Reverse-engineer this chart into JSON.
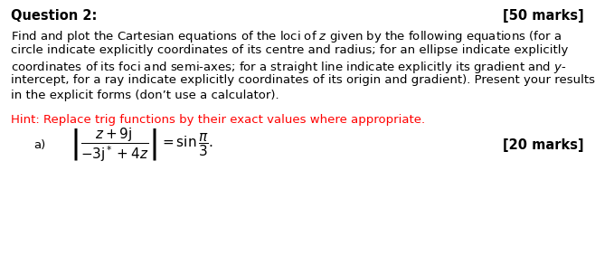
{
  "bg_color": "#ffffff",
  "title_text": "Question 2:",
  "marks_text": "[50 marks]",
  "body_text_lines": [
    "Find and plot the Cartesian equations of the loci of $z$ given by the following equations (for a",
    "circle indicate explicitly coordinates of its centre and radius; for an ellipse indicate explicitly",
    "coordinates of its foci and semi-axes; for a straight line indicate explicitly its gradient and $y$-",
    "intercept, for a ray indicate explicitly coordinates of its origin and gradient). Present your results",
    "in the explicit forms (don’t use a calculator)."
  ],
  "hint_text": "Hint: Replace trig functions by their exact values where appropriate.",
  "hint_color": "#ff0000",
  "part_label": "a)",
  "part_marks": "[20 marks]",
  "title_fontsize": 10.5,
  "body_fontsize": 9.5,
  "hint_fontsize": 9.5,
  "eq_fontsize": 11
}
